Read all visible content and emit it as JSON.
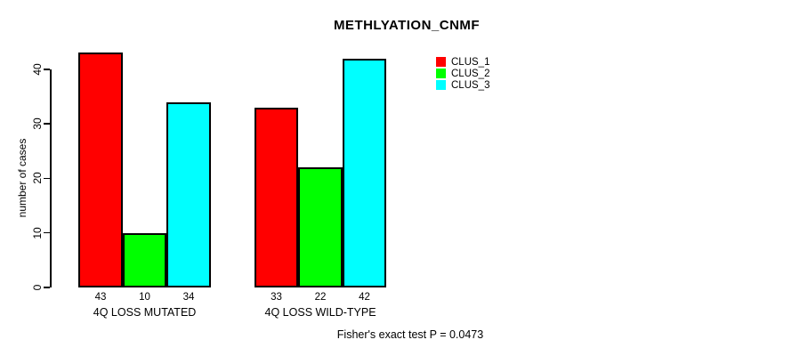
{
  "chart_data": {
    "type": "bar",
    "title": "METHLYATION_CNMF",
    "ylabel": "number of cases",
    "xlabel": "",
    "annotation": "Fisher's exact test P = 0.0473",
    "categories": [
      "4Q LOSS MUTATED",
      "4Q LOSS WILD-TYPE"
    ],
    "series": [
      {
        "name": "CLUS_1",
        "color": "#ff0000",
        "values": [
          43,
          33
        ]
      },
      {
        "name": "CLUS_2",
        "color": "#00ff00",
        "values": [
          10,
          22
        ]
      },
      {
        "name": "CLUS_3",
        "color": "#00ffff",
        "values": [
          34,
          42
        ]
      }
    ],
    "bar_value_labels": true,
    "yticks": [
      0,
      10,
      20,
      30,
      40
    ],
    "ylim": [
      0,
      43
    ],
    "grid": false,
    "legend_position": "top-right"
  },
  "legend": {
    "items": [
      {
        "label": "CLUS_1",
        "color": "#ff0000"
      },
      {
        "label": "CLUS_2",
        "color": "#00ff00"
      },
      {
        "label": "CLUS_3",
        "color": "#00ffff"
      }
    ]
  }
}
